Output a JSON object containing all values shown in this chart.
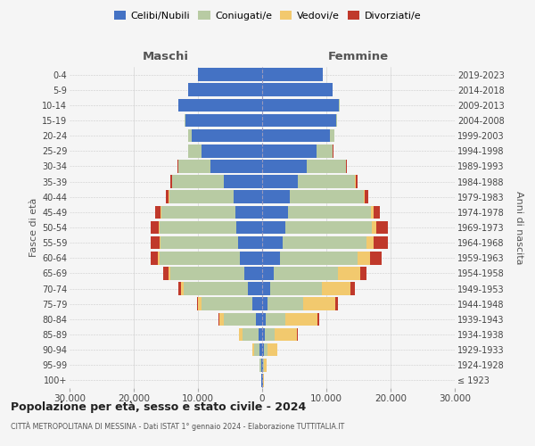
{
  "age_groups": [
    "100+",
    "95-99",
    "90-94",
    "85-89",
    "80-84",
    "75-79",
    "70-74",
    "65-69",
    "60-64",
    "55-59",
    "50-54",
    "45-49",
    "40-44",
    "35-39",
    "30-34",
    "25-29",
    "20-24",
    "15-19",
    "10-14",
    "5-9",
    "0-4"
  ],
  "birth_years": [
    "≤ 1923",
    "1924-1928",
    "1929-1933",
    "1934-1938",
    "1939-1943",
    "1944-1948",
    "1949-1953",
    "1954-1958",
    "1959-1963",
    "1964-1968",
    "1969-1973",
    "1974-1978",
    "1979-1983",
    "1984-1988",
    "1989-1993",
    "1994-1998",
    "1999-2003",
    "2004-2008",
    "2009-2013",
    "2014-2018",
    "2019-2023"
  ],
  "male": {
    "celibi": [
      100,
      150,
      350,
      600,
      1000,
      1500,
      2200,
      2800,
      3500,
      3800,
      4000,
      4200,
      4500,
      6000,
      8000,
      9500,
      11000,
      12000,
      13000,
      11500,
      10000
    ],
    "coniugati": [
      50,
      200,
      900,
      2500,
      5000,
      8000,
      10000,
      11500,
      12500,
      12000,
      12000,
      11500,
      10000,
      8000,
      5000,
      2000,
      500,
      100,
      50,
      20,
      10
    ],
    "vedovi": [
      20,
      80,
      250,
      500,
      600,
      500,
      400,
      300,
      200,
      150,
      100,
      80,
      60,
      40,
      20,
      10,
      5,
      2,
      1,
      1,
      0
    ],
    "divorziati": [
      5,
      20,
      50,
      80,
      150,
      200,
      500,
      800,
      1200,
      1400,
      1200,
      900,
      500,
      300,
      150,
      50,
      20,
      5,
      2,
      1,
      0
    ]
  },
  "female": {
    "nubili": [
      80,
      120,
      250,
      400,
      600,
      900,
      1300,
      1800,
      2800,
      3200,
      3600,
      4000,
      4300,
      5500,
      7000,
      8500,
      10500,
      11500,
      12000,
      11000,
      9500
    ],
    "coniugate": [
      30,
      150,
      600,
      1500,
      3000,
      5500,
      8000,
      10000,
      12000,
      13000,
      13500,
      13000,
      11500,
      9000,
      6000,
      2500,
      700,
      150,
      60,
      25,
      10
    ],
    "vedove": [
      100,
      400,
      1500,
      3500,
      5000,
      5000,
      4500,
      3500,
      2000,
      1200,
      700,
      400,
      200,
      100,
      50,
      20,
      8,
      3,
      1,
      1,
      0
    ],
    "divorziate": [
      5,
      20,
      80,
      150,
      250,
      400,
      700,
      1000,
      1800,
      2200,
      1800,
      1000,
      500,
      250,
      100,
      40,
      15,
      5,
      2,
      1,
      0
    ]
  },
  "colors": {
    "celibi": "#4472c4",
    "coniugati": "#b8cba3",
    "vedovi": "#f2c96e",
    "divorziati": "#c0392b"
  },
  "xlim": 30000,
  "xticks": [
    -30000,
    -20000,
    -10000,
    0,
    10000,
    20000,
    30000
  ],
  "xtick_labels": [
    "30.000",
    "20.000",
    "10.000",
    "0",
    "10.000",
    "20.000",
    "30.000"
  ],
  "title1": "Popolazione per età, sesso e stato civile - 2024",
  "title2": "CITTÀ METROPOLITANA DI MESSINA - Dati ISTAT 1° gennaio 2024 - Elaborazione TUTTITALIA.IT",
  "legend_labels": [
    "Celibi/Nubili",
    "Coniugati/e",
    "Vedovi/e",
    "Divorziati/e"
  ],
  "legend_colors": [
    "#4472c4",
    "#b8cba3",
    "#f2c96e",
    "#c0392b"
  ],
  "ylabel_left": "Fasce di età",
  "ylabel_right": "Anni di nascita",
  "header_maschi": "Maschi",
  "header_femmine": "Femmine",
  "background_color": "#f5f5f5"
}
